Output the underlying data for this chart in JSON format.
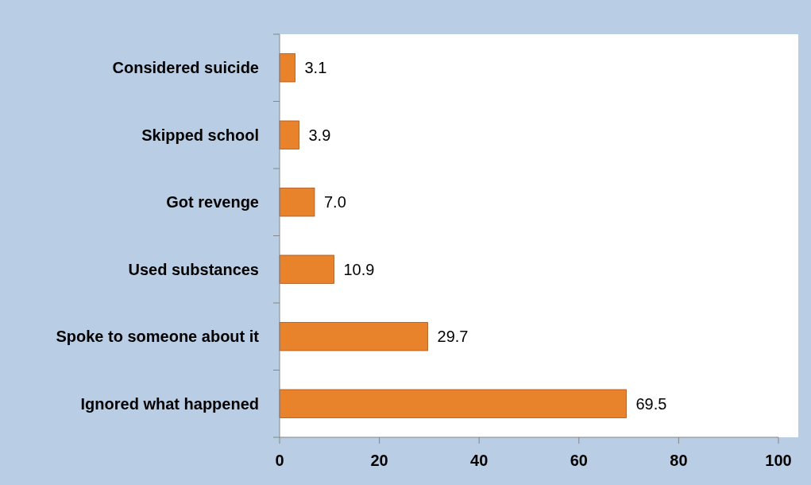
{
  "chart_data": {
    "type": "bar",
    "orientation": "horizontal",
    "categories": [
      "Considered suicide",
      "Skipped school",
      "Got revenge",
      "Used substances",
      "Spoke to someone about it",
      "Ignored what happened"
    ],
    "values": [
      3.1,
      3.9,
      7.0,
      10.9,
      29.7,
      69.5
    ],
    "value_labels": [
      "3.1",
      "3.9",
      "7.0",
      "10.9",
      "29.7",
      "69.5"
    ],
    "color": "#e8832c",
    "xlim": [
      0,
      100
    ],
    "xticks": [
      0,
      20,
      40,
      60,
      80,
      100
    ],
    "grid": false
  }
}
